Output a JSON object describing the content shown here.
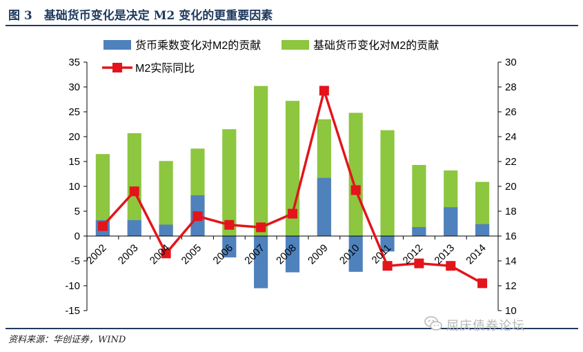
{
  "figure": {
    "title": "图 3　基础货币变化是决定 M2 变化的更重要因素",
    "source": "资料来源：华创证券，WIND",
    "watermark": "屈庆债券论坛"
  },
  "chart_data": {
    "type": "bar",
    "x": [
      "2002",
      "2003",
      "2004",
      "2005",
      "2006",
      "2007",
      "2008",
      "2009",
      "2010",
      "2011",
      "2012",
      "2013",
      "2014"
    ],
    "series": [
      {
        "name": "货币乘数变化对M2的贡献",
        "kind": "bar",
        "axis": "left",
        "values": [
          3.2,
          3.2,
          2.3,
          8.2,
          -4.3,
          -10.5,
          -7.3,
          11.7,
          -7.2,
          -3.1,
          1.8,
          5.8,
          2.4
        ]
      },
      {
        "name": "基础货币变化对M2的贡献",
        "kind": "bar",
        "axis": "left",
        "values": [
          16.5,
          20.7,
          15.1,
          17.6,
          21.5,
          30.2,
          27.2,
          23.5,
          24.8,
          21.3,
          14.3,
          13.2,
          10.9
        ]
      },
      {
        "name": "M2实际同比",
        "kind": "line",
        "axis": "right",
        "values": [
          16.8,
          19.6,
          14.6,
          17.6,
          16.9,
          16.7,
          17.8,
          27.7,
          19.7,
          13.6,
          13.8,
          13.6,
          12.2
        ]
      }
    ],
    "y_left": {
      "min": -15,
      "max": 35,
      "step": 5
    },
    "y_right": {
      "min": 10,
      "max": 30,
      "step": 2
    },
    "legend_position": "top",
    "colors": {
      "multiplier": "#4f81bd",
      "base": "#8dc63f",
      "m2": "#e3141b"
    },
    "grid": false
  }
}
